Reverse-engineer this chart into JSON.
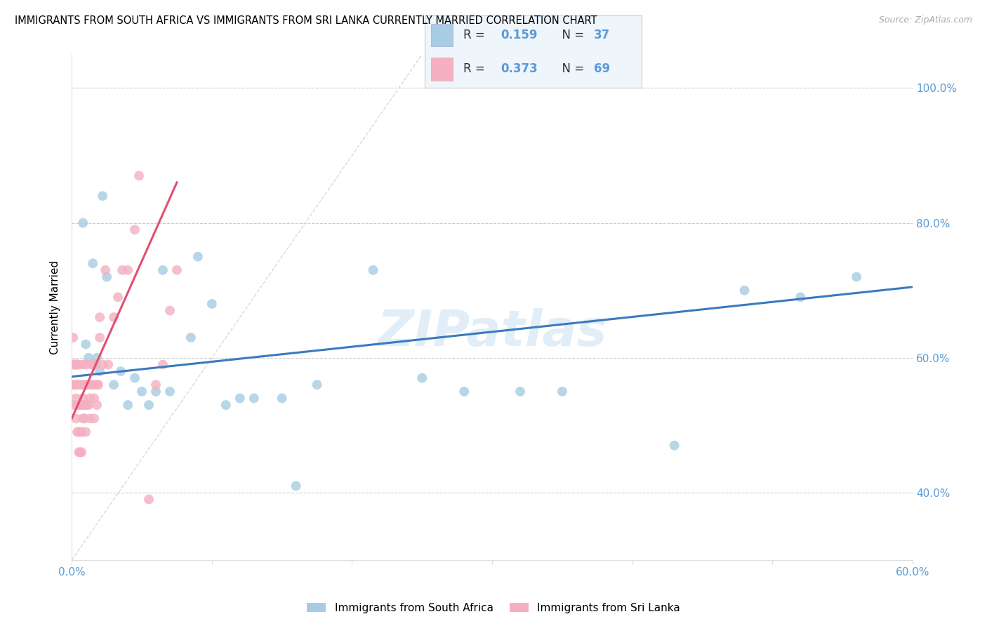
{
  "title": "IMMIGRANTS FROM SOUTH AFRICA VS IMMIGRANTS FROM SRI LANKA CURRENTLY MARRIED CORRELATION CHART",
  "source": "Source: ZipAtlas.com",
  "ylabel": "Currently Married",
  "xlim": [
    0.0,
    0.6
  ],
  "ylim": [
    0.3,
    1.05
  ],
  "r_blue": "0.159",
  "n_blue": "37",
  "r_pink": "0.373",
  "n_pink": "69",
  "blue_color": "#a8cce4",
  "pink_color": "#f4b0c0",
  "blue_line_color": "#3a7abf",
  "pink_line_color": "#e05070",
  "diag_line_color": "#d0c8c8",
  "axis_color": "#5b9bd5",
  "grid_color": "#cccccc",
  "watermark": "ZIPatlas",
  "legend_box_color": "#eef5fb",
  "blue_scatter_x": [
    0.003,
    0.008,
    0.01,
    0.012,
    0.015,
    0.015,
    0.018,
    0.02,
    0.022,
    0.025,
    0.03,
    0.035,
    0.04,
    0.045,
    0.05,
    0.055,
    0.06,
    0.065,
    0.07,
    0.085,
    0.09,
    0.1,
    0.11,
    0.12,
    0.13,
    0.15,
    0.16,
    0.175,
    0.215,
    0.25,
    0.28,
    0.32,
    0.35,
    0.43,
    0.48,
    0.52,
    0.56
  ],
  "blue_scatter_y": [
    0.59,
    0.8,
    0.62,
    0.6,
    0.59,
    0.74,
    0.6,
    0.58,
    0.84,
    0.72,
    0.56,
    0.58,
    0.53,
    0.57,
    0.55,
    0.53,
    0.55,
    0.73,
    0.55,
    0.63,
    0.75,
    0.68,
    0.53,
    0.54,
    0.54,
    0.54,
    0.41,
    0.56,
    0.73,
    0.57,
    0.55,
    0.55,
    0.55,
    0.47,
    0.7,
    0.69,
    0.72
  ],
  "pink_scatter_x": [
    0.001,
    0.001,
    0.001,
    0.002,
    0.002,
    0.002,
    0.003,
    0.003,
    0.003,
    0.003,
    0.004,
    0.004,
    0.004,
    0.004,
    0.005,
    0.005,
    0.005,
    0.005,
    0.005,
    0.006,
    0.006,
    0.006,
    0.007,
    0.007,
    0.007,
    0.007,
    0.008,
    0.008,
    0.008,
    0.009,
    0.009,
    0.009,
    0.01,
    0.01,
    0.01,
    0.01,
    0.011,
    0.011,
    0.012,
    0.012,
    0.013,
    0.013,
    0.014,
    0.014,
    0.015,
    0.015,
    0.016,
    0.016,
    0.017,
    0.017,
    0.018,
    0.018,
    0.019,
    0.02,
    0.02,
    0.022,
    0.024,
    0.026,
    0.03,
    0.033,
    0.036,
    0.04,
    0.045,
    0.048,
    0.055,
    0.06,
    0.065,
    0.07,
    0.075
  ],
  "pink_scatter_y": [
    0.56,
    0.59,
    0.63,
    0.53,
    0.56,
    0.59,
    0.51,
    0.54,
    0.56,
    0.59,
    0.49,
    0.53,
    0.56,
    0.59,
    0.46,
    0.49,
    0.53,
    0.56,
    0.59,
    0.46,
    0.49,
    0.53,
    0.46,
    0.49,
    0.53,
    0.56,
    0.51,
    0.54,
    0.59,
    0.51,
    0.53,
    0.56,
    0.49,
    0.53,
    0.56,
    0.59,
    0.53,
    0.56,
    0.53,
    0.56,
    0.51,
    0.54,
    0.56,
    0.59,
    0.56,
    0.59,
    0.51,
    0.54,
    0.56,
    0.59,
    0.53,
    0.56,
    0.56,
    0.63,
    0.66,
    0.59,
    0.73,
    0.59,
    0.66,
    0.69,
    0.73,
    0.73,
    0.79,
    0.87,
    0.39,
    0.56,
    0.59,
    0.67,
    0.73
  ],
  "blue_trend_x": [
    0.0,
    0.6
  ],
  "blue_trend_y": [
    0.572,
    0.705
  ],
  "pink_trend_x": [
    0.0,
    0.075
  ],
  "pink_trend_y": [
    0.51,
    0.86
  ],
  "xticks": [
    0.0,
    0.1,
    0.2,
    0.3,
    0.4,
    0.5,
    0.6
  ],
  "xtick_labels": [
    "0.0%",
    "",
    "",
    "",
    "",
    "",
    "60.0%"
  ],
  "yticks_right": [
    0.4,
    0.6,
    0.8,
    1.0
  ],
  "ytick_labels_right": [
    "40.0%",
    "60.0%",
    "80.0%",
    "100.0%"
  ]
}
